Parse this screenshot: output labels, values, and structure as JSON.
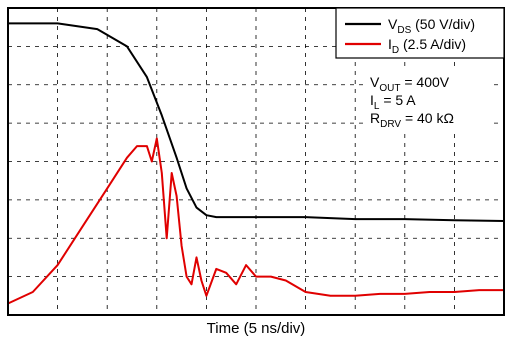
{
  "chart_data": {
    "type": "line",
    "xlabel": "Time (5 ns/div)",
    "ylabel": "",
    "x_divisions": 10,
    "y_divisions": 8,
    "grid": true,
    "legend_position": "top-right",
    "series": [
      {
        "name_main": "V",
        "name_sub": "DS",
        "name_rest": " (50 V/div)",
        "color": "#000000",
        "x": [
          0,
          1.0,
          1.8,
          2.4,
          2.8,
          3.1,
          3.4,
          3.6,
          3.8,
          4.0,
          4.2,
          4.5,
          5.0,
          6.0,
          7.0,
          8.0,
          9.0,
          10.0
        ],
        "y": [
          7.6,
          7.6,
          7.45,
          7.0,
          6.2,
          5.2,
          4.1,
          3.3,
          2.8,
          2.6,
          2.55,
          2.55,
          2.55,
          2.55,
          2.5,
          2.5,
          2.47,
          2.45
        ]
      },
      {
        "name_main": "I",
        "name_sub": "D",
        "name_rest": " (2.5 A/div)",
        "color": "#e00000",
        "x": [
          0,
          0.5,
          1.0,
          1.5,
          2.0,
          2.4,
          2.6,
          2.8,
          2.9,
          3.0,
          3.1,
          3.2,
          3.3,
          3.4,
          3.5,
          3.6,
          3.7,
          3.8,
          3.9,
          4.0,
          4.2,
          4.4,
          4.6,
          4.8,
          5.0,
          5.3,
          5.6,
          6.0,
          6.5,
          7.0,
          7.5,
          8.0,
          8.5,
          9.0,
          9.5,
          10.0
        ],
        "y": [
          0.3,
          0.6,
          1.3,
          2.3,
          3.3,
          4.1,
          4.4,
          4.4,
          4.0,
          4.6,
          3.7,
          2.0,
          3.7,
          3.1,
          1.8,
          1.0,
          0.8,
          1.5,
          0.9,
          0.5,
          1.2,
          1.1,
          0.8,
          1.3,
          1.0,
          1.0,
          0.9,
          0.6,
          0.5,
          0.5,
          0.55,
          0.55,
          0.6,
          0.6,
          0.65,
          0.65
        ]
      }
    ],
    "annotations": [
      {
        "main": "V",
        "sub": "OUT",
        "rest": " = 400V"
      },
      {
        "main": "I",
        "sub": "L",
        "rest": " = 5 A"
      },
      {
        "main": "R",
        "sub": "DRV",
        "rest": " = 40 kΩ"
      }
    ]
  }
}
